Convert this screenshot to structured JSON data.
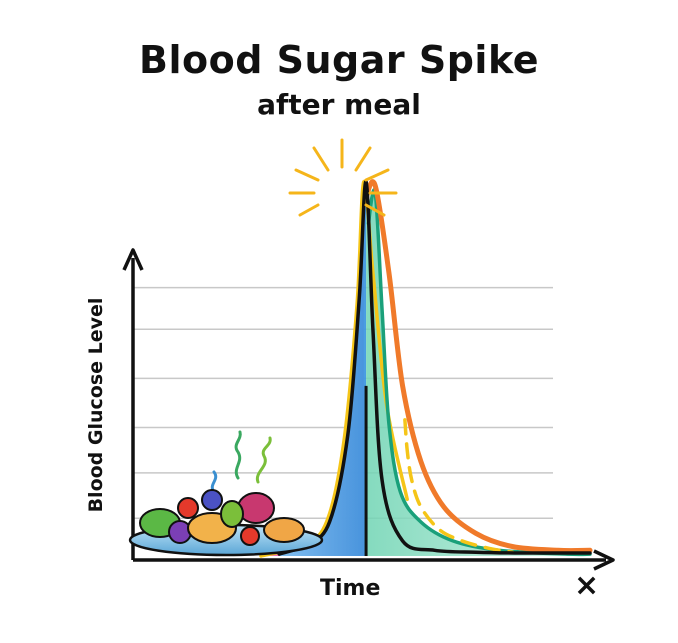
{
  "chart_data": {
    "type": "line",
    "title": "Blood Sugar Spike",
    "subtitle": "after meal",
    "xlabel": "Time",
    "ylabel": "Blood Glucose Level",
    "x_axis_end_mark": "×",
    "grid": true,
    "xlim": [
      0,
      10
    ],
    "ylim": [
      0,
      10
    ],
    "series": [
      {
        "name": "black-spike-outline",
        "color": "#111111",
        "x": [
          3.2,
          3.8,
          4.3,
          4.7,
          4.95,
          5.1,
          5.25,
          5.45,
          5.9,
          6.6,
          7.5,
          8.5,
          10
        ],
        "y": [
          0.05,
          0.3,
          0.9,
          3.2,
          6.8,
          9.9,
          6.0,
          2.0,
          0.4,
          0.15,
          0.1,
          0.08,
          0.08
        ]
      },
      {
        "name": "yellow",
        "color": "#f5c518",
        "x": [
          2.8,
          3.6,
          4.2,
          4.6,
          4.9,
          5.05,
          5.25,
          5.55,
          6.0
        ],
        "y": [
          0.0,
          0.25,
          0.8,
          2.9,
          6.6,
          9.9,
          7.5,
          4.0,
          1.5
        ]
      },
      {
        "name": "teal",
        "color": "#1aa07a",
        "x": [
          5.15,
          5.3,
          5.45,
          5.6,
          5.85,
          6.3,
          7.0,
          8.0,
          9.5,
          10.0
        ],
        "y": [
          8.8,
          9.6,
          6.5,
          3.5,
          1.7,
          0.9,
          0.4,
          0.15,
          0.05,
          0.05
        ]
      },
      {
        "name": "orange",
        "color": "#f07a2a",
        "x": [
          5.1,
          5.3,
          5.6,
          5.9,
          6.3,
          6.8,
          7.5,
          8.3,
          9.3,
          10.0
        ],
        "y": [
          9.5,
          9.8,
          7.5,
          4.5,
          2.5,
          1.3,
          0.6,
          0.25,
          0.15,
          0.15
        ]
      },
      {
        "name": "yellow-dashed",
        "color": "#f5c518",
        "dashed": true,
        "x": [
          5.95,
          6.0,
          6.1,
          6.3,
          6.7,
          7.2,
          7.8,
          8.3
        ],
        "y": [
          3.6,
          2.8,
          2.0,
          1.3,
          0.7,
          0.4,
          0.2,
          0.1
        ]
      }
    ],
    "annotations": [
      "meal-illustration",
      "peak-burst"
    ]
  }
}
